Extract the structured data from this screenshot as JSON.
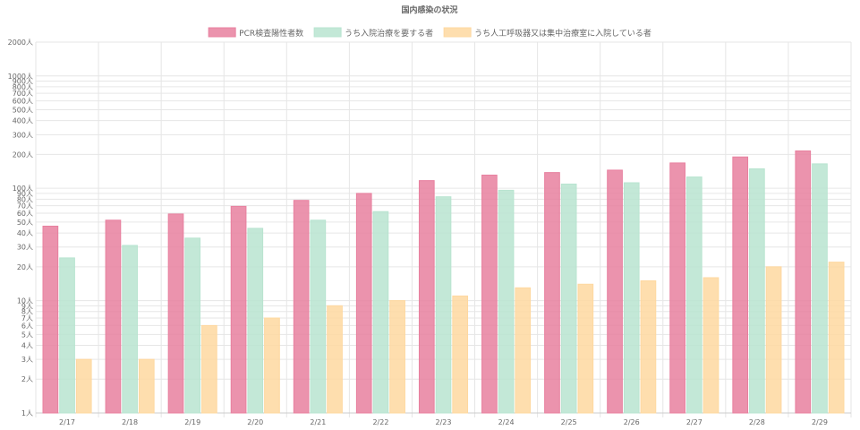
{
  "chart_data": {
    "type": "bar",
    "title": "国内感染の状況",
    "categories": [
      "2/17",
      "2/18",
      "2/19",
      "2/20",
      "2/21",
      "2/22",
      "2/23",
      "2/24",
      "2/25",
      "2/26",
      "2/27",
      "2/28",
      "2/29"
    ],
    "series": [
      {
        "name": "PCR検査陽性者数",
        "color": "#e8809f",
        "values": [
          46,
          52,
          59,
          69,
          78,
          90,
          117,
          131,
          138,
          145,
          168,
          190,
          215
        ]
      },
      {
        "name": "うち入院治療を要する者",
        "color": "#b8e4d0",
        "values": [
          24,
          31,
          36,
          44,
          52,
          62,
          84,
          96,
          109,
          112,
          126,
          149,
          165
        ]
      },
      {
        "name": "うち人工呼吸器又は集中治療室に入院している者",
        "color": "#fed8a0",
        "values": [
          3,
          3,
          6,
          7,
          9,
          10,
          11,
          13,
          14,
          15,
          16,
          20,
          22
        ]
      }
    ],
    "y_scale": "log",
    "ylim": [
      1,
      2000
    ],
    "y_ticks": [
      {
        "value": 1,
        "label": "1人"
      },
      {
        "value": 2,
        "label": "2人"
      },
      {
        "value": 3,
        "label": "3人"
      },
      {
        "value": 4,
        "label": "4人"
      },
      {
        "value": 5,
        "label": "5人"
      },
      {
        "value": 6,
        "label": "6人"
      },
      {
        "value": 7,
        "label": "7人"
      },
      {
        "value": 8,
        "label": "8人"
      },
      {
        "value": 9,
        "label": "9人"
      },
      {
        "value": 10,
        "label": "10人"
      },
      {
        "value": 20,
        "label": "20人"
      },
      {
        "value": 30,
        "label": "30人"
      },
      {
        "value": 40,
        "label": "40人"
      },
      {
        "value": 50,
        "label": "50人"
      },
      {
        "value": 60,
        "label": "60人"
      },
      {
        "value": 70,
        "label": "70人"
      },
      {
        "value": 80,
        "label": "80人"
      },
      {
        "value": 90,
        "label": "90人"
      },
      {
        "value": 100,
        "label": "100人"
      },
      {
        "value": 200,
        "label": "200人"
      },
      {
        "value": 300,
        "label": "300人"
      },
      {
        "value": 400,
        "label": "400人"
      },
      {
        "value": 500,
        "label": "500人"
      },
      {
        "value": 600,
        "label": "600人"
      },
      {
        "value": 700,
        "label": "700人"
      },
      {
        "value": 800,
        "label": "800人"
      },
      {
        "value": 900,
        "label": "900人"
      },
      {
        "value": 1000,
        "label": "1000人"
      },
      {
        "value": 2000,
        "label": "2000人"
      }
    ],
    "grid": true,
    "legend_position": "top"
  }
}
